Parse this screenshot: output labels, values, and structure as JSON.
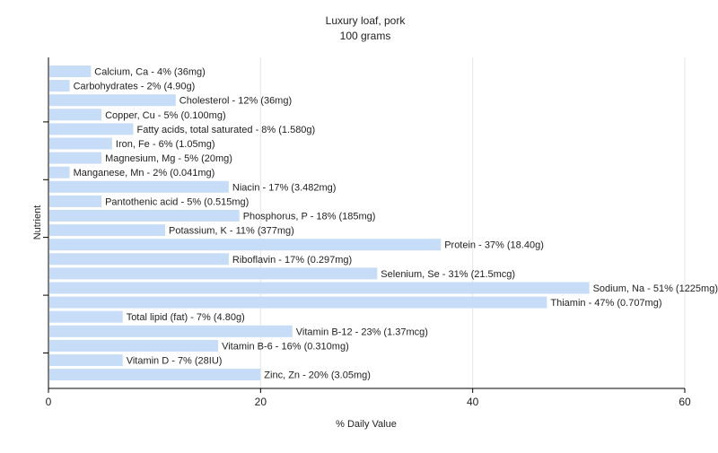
{
  "chart_data": {
    "type": "bar",
    "orientation": "horizontal",
    "title": "Luxury loaf, pork",
    "subtitle": "100 grams",
    "xlabel": "% Daily Value",
    "ylabel": "Nutrient",
    "xlim": [
      0,
      60
    ],
    "xticks": [
      0,
      20,
      40,
      60
    ],
    "grid": true,
    "bar_color": "#c6dcf7",
    "categories": [
      "Calcium, Ca",
      "Carbohydrates",
      "Cholesterol",
      "Copper, Cu",
      "Fatty acids, total saturated",
      "Iron, Fe",
      "Magnesium, Mg",
      "Manganese, Mn",
      "Niacin",
      "Pantothenic acid",
      "Phosphorus, P",
      "Potassium, K",
      "Protein",
      "Riboflavin",
      "Selenium, Se",
      "Sodium, Na",
      "Thiamin",
      "Total lipid (fat)",
      "Vitamin B-12",
      "Vitamin B-6",
      "Vitamin D",
      "Zinc, Zn"
    ],
    "values": [
      4,
      2,
      12,
      5,
      8,
      6,
      5,
      2,
      17,
      5,
      18,
      11,
      37,
      17,
      31,
      51,
      47,
      7,
      23,
      16,
      7,
      20
    ],
    "labels": [
      "Calcium, Ca - 4% (36mg)",
      "Carbohydrates - 2% (4.90g)",
      "Cholesterol - 12% (36mg)",
      "Copper, Cu - 5% (0.100mg)",
      "Fatty acids, total saturated - 8% (1.580g)",
      "Iron, Fe - 6% (1.05mg)",
      "Magnesium, Mg - 5% (20mg)",
      "Manganese, Mn - 2% (0.041mg)",
      "Niacin - 17% (3.482mg)",
      "Pantothenic acid - 5% (0.515mg)",
      "Phosphorus, P - 18% (185mg)",
      "Potassium, K - 11% (377mg)",
      "Protein - 37% (18.40g)",
      "Riboflavin - 17% (0.297mg)",
      "Selenium, Se - 31% (21.5mcg)",
      "Sodium, Na - 51% (1225mg)",
      "Thiamin - 47% (0.707mg)",
      "Total lipid (fat) - 7% (4.80g)",
      "Vitamin B-12 - 23% (1.37mcg)",
      "Vitamin B-6 - 16% (0.310mg)",
      "Vitamin D - 7% (28IU)",
      "Zinc, Zn - 20% (3.05mg)"
    ]
  }
}
